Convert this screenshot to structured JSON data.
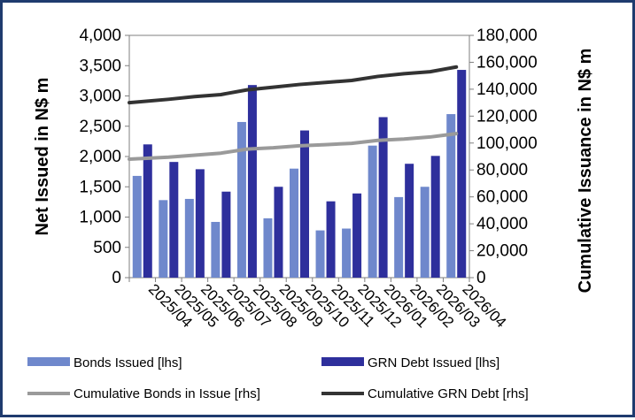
{
  "chart_data": {
    "type": "bar",
    "categories": [
      "2025/04",
      "2025/05",
      "2025/06",
      "2025/07",
      "2025/08",
      "2025/09",
      "2025/10",
      "2025/11",
      "2025/12",
      "2026/01",
      "2026/02",
      "2026/03",
      "2026/04"
    ],
    "ylabel_left": "Net Issued in N$ m",
    "ylabel_right": "Cumulative Issuance in N$ m",
    "ylim_left": [
      0,
      4000
    ],
    "ylim_right": [
      0,
      180000
    ],
    "yticks_left": [
      "0",
      "500",
      "1,000",
      "1,500",
      "2,000",
      "2,500",
      "3,000",
      "3,500",
      "4,000"
    ],
    "yticks_right": [
      "0",
      "20,000",
      "40,000",
      "60,000",
      "80,000",
      "100,000",
      "120,000",
      "140,000",
      "160,000",
      "180,000"
    ],
    "grid": false,
    "legend_position": "bottom",
    "series": [
      {
        "name": "Bonds Issued [lhs]",
        "kind": "bar",
        "axis": "left",
        "color": "#6f88cc",
        "values": [
          1680,
          1280,
          1300,
          920,
          2570,
          980,
          1800,
          780,
          810,
          2180,
          1330,
          1500,
          2700
        ]
      },
      {
        "name": "GRN Debt Issued [lhs]",
        "kind": "bar",
        "axis": "left",
        "color": "#2e2f9c",
        "values": [
          2200,
          1910,
          1790,
          1420,
          3180,
          1500,
          2430,
          1260,
          1390,
          2650,
          1880,
          2010,
          3430
        ]
      },
      {
        "name": "Cumulative Bonds in Issue [rhs]",
        "kind": "line",
        "axis": "right",
        "color": "#9a9a9a",
        "values": [
          88000,
          89500,
          91000,
          92500,
          95500,
          96500,
          98000,
          98800,
          99800,
          102000,
          103000,
          104500,
          107000
        ]
      },
      {
        "name": "Cumulative GRN Debt [rhs]",
        "kind": "line",
        "axis": "right",
        "color": "#333333",
        "values": [
          130000,
          132500,
          134500,
          136000,
          139500,
          141500,
          143500,
          145000,
          146500,
          149500,
          151500,
          153000,
          156500
        ]
      }
    ]
  }
}
